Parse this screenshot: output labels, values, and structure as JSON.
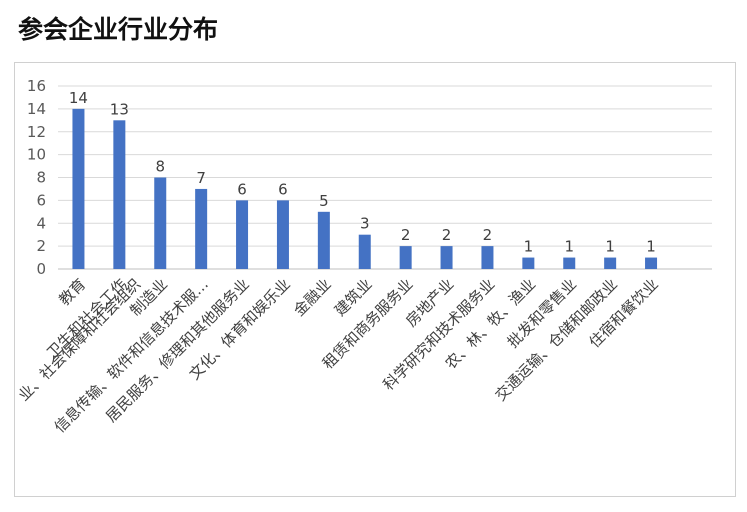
{
  "header": {
    "title": "参会企业行业分布"
  },
  "colors": {
    "bar": "#4472C4",
    "grid": "#d9d9d9",
    "axis": "#bfbfbf"
  },
  "chart_data": {
    "type": "bar",
    "title": "参会企业行业分布",
    "xlabel": "",
    "ylabel": "",
    "ylim": [
      0,
      16
    ],
    "yticks": [
      0,
      2,
      4,
      6,
      8,
      10,
      12,
      14,
      16
    ],
    "grid": true,
    "legend": "none",
    "categories": [
      "教育",
      "卫生和社会工作",
      "制造业",
      "信息传输、软件和信息技术服…",
      "居民服务、修理和其他服务业",
      "文化、体育和娱乐业",
      "金融业",
      "建筑业",
      "租赁和商务服务业",
      "房地产业",
      "科学研究和技术服务业",
      "农、林、牧、渔业",
      "批发和零售业",
      "交通运输、仓储和邮政业",
      "住宿和餐饮业"
    ],
    "extra_label": "社会保障和社会组织",
    "extra_label_prefix": "业、",
    "values": [
      14,
      13,
      8,
      7,
      6,
      6,
      5,
      3,
      2,
      2,
      2,
      1,
      1,
      1,
      1
    ],
    "value_labels": [
      "14",
      "13",
      "8",
      "7",
      "6",
      "6",
      "5",
      "3",
      "2",
      "2",
      "2",
      "1",
      "1",
      "1",
      "1"
    ]
  }
}
